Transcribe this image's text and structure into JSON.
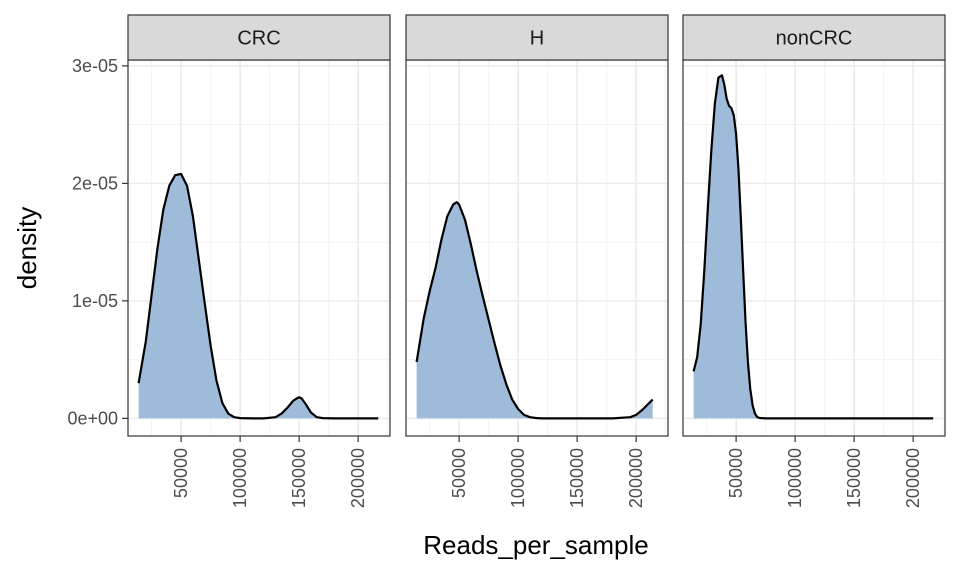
{
  "chart_data": {
    "type": "area",
    "xlabel": "Reads_per_sample",
    "ylabel": "density",
    "xlim": [
      5000,
      227000
    ],
    "ylim": [
      -1.5e-06,
      3.05e-05
    ],
    "x_ticks": [
      50000,
      100000,
      150000,
      200000
    ],
    "x_tick_labels": [
      "50000",
      "100000",
      "150000",
      "200000"
    ],
    "y_ticks": [
      0,
      1e-05,
      2e-05,
      3e-05
    ],
    "y_tick_labels": [
      "0e+00",
      "1e-05",
      "2e-05",
      "3e-05"
    ],
    "grid": true,
    "fill_color": "#9ebcd9",
    "line_color": "#000000",
    "facets": [
      {
        "label": "CRC",
        "x": [
          14000,
          20000,
          25000,
          30000,
          35000,
          40000,
          45000,
          50000,
          55000,
          60000,
          65000,
          70000,
          75000,
          80000,
          85000,
          90000,
          95000,
          100000,
          110000,
          120000,
          130000,
          135000,
          140000,
          145000,
          148000,
          150000,
          152000,
          155000,
          160000,
          165000,
          170000,
          180000,
          200000,
          217000
        ],
        "y": [
          3e-06,
          6.5e-06,
          1.05e-05,
          1.45e-05,
          1.78e-05,
          1.98e-05,
          2.07e-05,
          2.08e-05,
          1.98e-05,
          1.72e-05,
          1.35e-05,
          9.8e-06,
          6.2e-06,
          3.2e-06,
          1.3e-06,
          4e-07,
          1e-07,
          2e-08,
          0,
          0,
          1e-07,
          4e-07,
          9e-07,
          1.5e-06,
          1.7e-06,
          1.8e-06,
          1.7e-06,
          1.3e-06,
          5e-07,
          1e-07,
          2e-08,
          0,
          0,
          0
        ]
      },
      {
        "label": "H",
        "x": [
          14000,
          20000,
          25000,
          30000,
          35000,
          40000,
          45000,
          48000,
          50000,
          55000,
          60000,
          65000,
          70000,
          75000,
          80000,
          85000,
          90000,
          95000,
          100000,
          105000,
          110000,
          115000,
          120000,
          130000,
          150000,
          180000,
          195000,
          200000,
          205000,
          210000,
          214000
        ],
        "y": [
          4.8e-06,
          8.5e-06,
          1.08e-05,
          1.28e-05,
          1.52e-05,
          1.72e-05,
          1.82e-05,
          1.84e-05,
          1.82e-05,
          1.69e-05,
          1.48e-05,
          1.25e-05,
          1.04e-05,
          8.4e-06,
          6.4e-06,
          4.5e-06,
          2.9e-06,
          1.6e-06,
          8e-07,
          3e-07,
          1e-07,
          3e-08,
          0,
          0,
          0,
          0,
          1e-07,
          3e-07,
          7e-07,
          1.2e-06,
          1.6e-06
        ]
      },
      {
        "label": "nonCRC",
        "x": [
          14000,
          17000,
          20000,
          23000,
          26000,
          29000,
          32000,
          35000,
          38000,
          40000,
          42000,
          44000,
          46000,
          48000,
          50000,
          52000,
          54000,
          56000,
          58000,
          60000,
          62000,
          64000,
          66000,
          68000,
          70000,
          75000,
          80000,
          100000,
          150000,
          217000
        ],
        "y": [
          4e-06,
          5.2e-06,
          8e-06,
          1.25e-05,
          1.78e-05,
          2.28e-05,
          2.68e-05,
          2.9e-05,
          2.92e-05,
          2.84e-05,
          2.72e-05,
          2.66e-05,
          2.64e-05,
          2.58e-05,
          2.42e-05,
          2.12e-05,
          1.7e-05,
          1.25e-05,
          8.2e-06,
          4.8e-06,
          2.5e-06,
          1.1e-06,
          4e-07,
          1e-07,
          3e-08,
          0,
          0,
          0,
          0,
          0
        ]
      }
    ]
  }
}
